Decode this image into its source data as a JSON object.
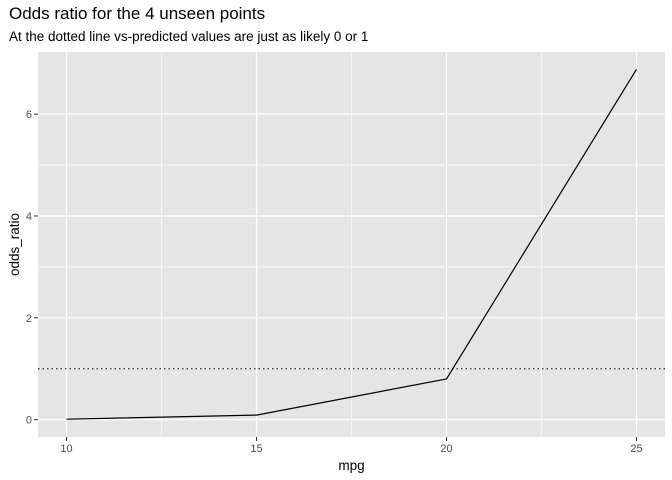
{
  "chart_data": {
    "type": "line",
    "title": "Odds ratio for the 4 unseen points",
    "subtitle": "At the dotted line vs-predicted values are just as likely 0 or 1",
    "xlabel": "mpg",
    "ylabel": "odds_ratio",
    "x": [
      10,
      15,
      20,
      25
    ],
    "y": [
      0.01,
      0.09,
      0.8,
      6.88
    ],
    "xlim": [
      9.25,
      25.75
    ],
    "ylim": [
      -0.34,
      7.22
    ],
    "x_ticks": [
      10,
      15,
      20,
      25
    ],
    "y_ticks": [
      0,
      2,
      4,
      6
    ],
    "reference_line": {
      "y": 1,
      "style": "dotted"
    },
    "grid": true,
    "colors": {
      "panel": "#e5e5e5",
      "grid": "#ffffff",
      "line": "#000000",
      "tick_text": "#4d4d4d"
    }
  }
}
